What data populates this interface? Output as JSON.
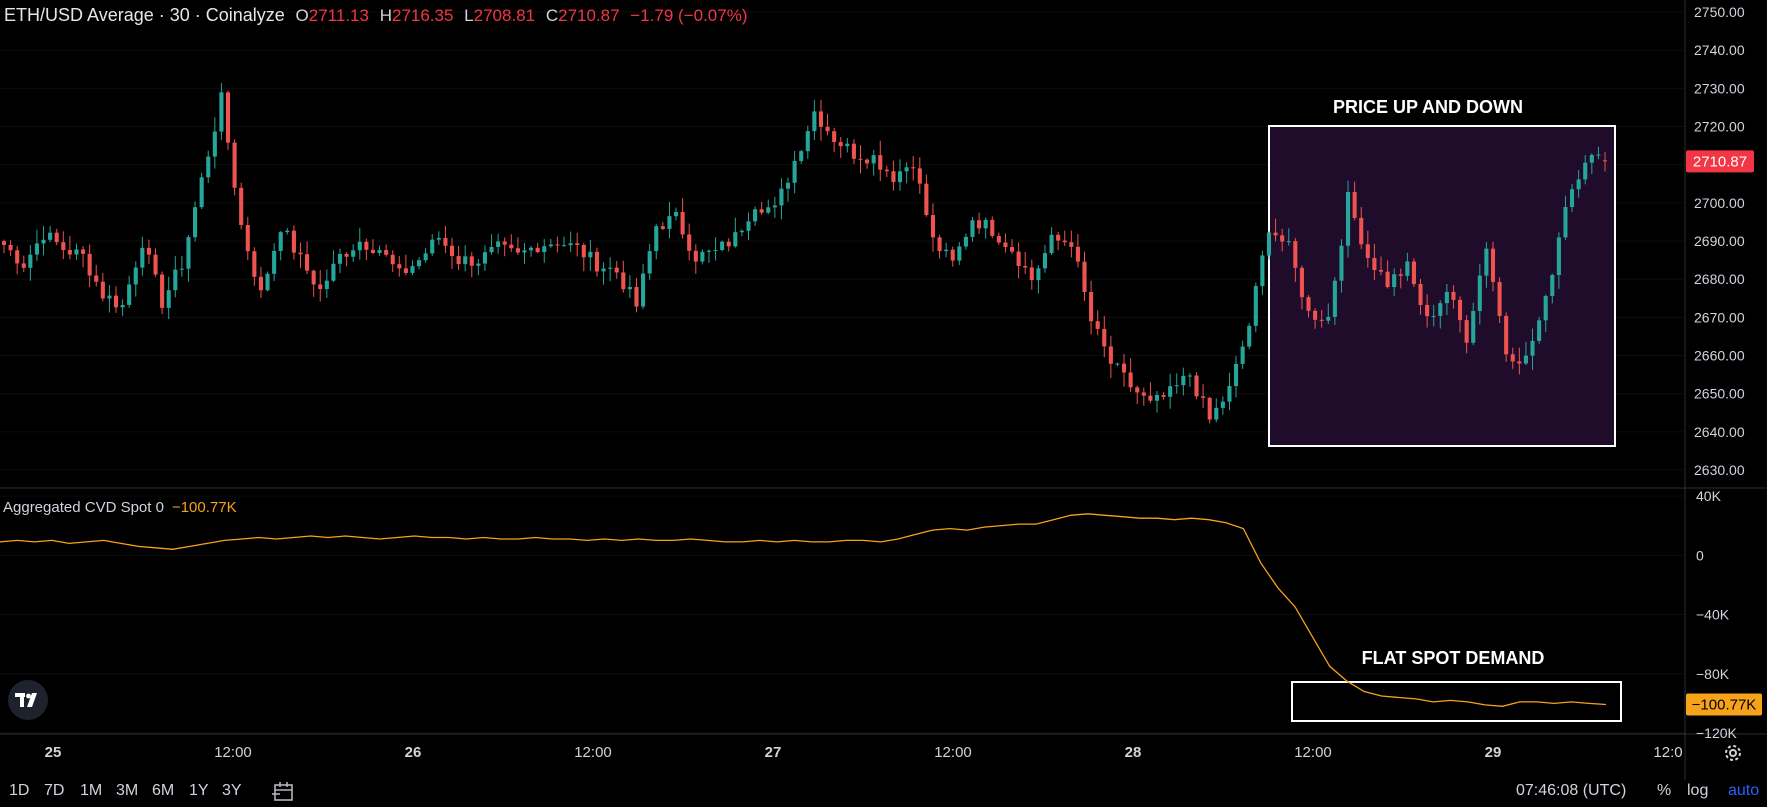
{
  "header": {
    "symbol": "ETH/USD Average · 30 · Coinalyze",
    "open_label": "O",
    "open": "2711.13",
    "high_label": "H",
    "high": "2716.35",
    "low_label": "L",
    "low": "2708.81",
    "close_label": "C",
    "close": "2710.87",
    "change": "−1.79 (−0.07%)"
  },
  "price_axis": {
    "ticks": [
      "2750.00",
      "2740.00",
      "2730.00",
      "2720.00",
      "2710.00",
      "2700.00",
      "2690.00",
      "2680.00",
      "2670.00",
      "2660.00",
      "2650.00",
      "2640.00",
      "2630.00"
    ],
    "last_price_label": "2710.87"
  },
  "cvd": {
    "name": "Aggregated CVD Spot 0",
    "value": "−100.77K",
    "ticks": [
      "40K",
      "0",
      "−40K",
      "−80K",
      "−120K"
    ],
    "last_value_label": "−100.77K"
  },
  "time_axis": {
    "labels": [
      "25",
      "12:00",
      "26",
      "12:00",
      "27",
      "12:00",
      "28",
      "12:00",
      "29",
      "12:0"
    ]
  },
  "annotations": {
    "price_box_label": "PRICE UP AND DOWN",
    "cvd_box_label": "FLAT SPOT DEMAND"
  },
  "bottom": {
    "ranges": [
      "1D",
      "7D",
      "1M",
      "3M",
      "6M",
      "1Y",
      "3Y"
    ],
    "time": "07:46:08 (UTC)",
    "percent": "%",
    "log": "log",
    "auto": "auto"
  },
  "colors": {
    "up": "#26a69a",
    "down": "#ef5350",
    "cvd_line": "#f7a21b",
    "price_box_fill": "#1f0c2a",
    "last_price_bg": "#f23645",
    "cvd_label_bg": "#f7a21b",
    "auto_active": "#2962ff"
  },
  "chart_data": [
    {
      "type": "candlestick",
      "title": "ETH/USD Average · 30 · Coinalyze",
      "ylim": [
        2625,
        2752
      ],
      "y_ticks": [
        2630,
        2640,
        2650,
        2660,
        2670,
        2680,
        2690,
        2700,
        2710,
        2720,
        2730,
        2740,
        2750
      ],
      "x_ticks": [
        "25",
        "12:00",
        "26",
        "12:00",
        "27",
        "12:00",
        "28",
        "12:00",
        "29",
        "12:0"
      ],
      "interval": "30m",
      "last": {
        "open": 2711.13,
        "high": 2716.35,
        "low": 2708.81,
        "close": 2710.87
      },
      "anchor_closes": [
        2689,
        2684,
        2692,
        2688,
        2686,
        2676,
        2673,
        2690,
        2674,
        2684,
        2706,
        2727,
        2694,
        2676,
        2694,
        2685,
        2677,
        2686,
        2690,
        2688,
        2681,
        2685,
        2691,
        2685,
        2685,
        2688,
        2686,
        2689,
        2690,
        2688,
        2684,
        2682,
        2673,
        2694,
        2696,
        2686,
        2687,
        2691,
        2700,
        2698,
        2711,
        2724,
        2717,
        2713,
        2712,
        2707,
        2711,
        2690,
        2684,
        2696,
        2693,
        2688,
        2680,
        2690,
        2690,
        2669,
        2658,
        2652,
        2647,
        2650,
        2655,
        2643,
        2651,
        2668,
        2694,
        2688,
        2671,
        2670,
        2701,
        2686,
        2679,
        2683,
        2669,
        2677,
        2665,
        2689,
        2661,
        2659,
        2674,
        2700,
        2712,
        2710.87
      ]
    },
    {
      "type": "line",
      "title": "Aggregated CVD Spot 0",
      "ylim": [
        -128,
        48
      ],
      "y_ticks": [
        40,
        0,
        -40,
        -80,
        -120
      ],
      "unit": "K",
      "x_ticks": [
        "25",
        "12:00",
        "26",
        "12:00",
        "27",
        "12:00",
        "28",
        "12:00",
        "29",
        "12:0"
      ],
      "values": [
        9,
        10,
        9,
        10,
        8,
        9,
        10,
        8,
        6,
        5,
        4,
        6,
        8,
        10,
        11,
        12,
        11,
        12,
        13,
        12,
        13,
        12,
        11,
        12,
        13,
        12,
        12,
        11,
        12,
        11,
        11,
        12,
        11,
        11,
        10,
        11,
        10,
        11,
        10,
        10,
        11,
        10,
        9,
        9,
        10,
        9,
        10,
        9,
        9,
        10,
        10,
        9,
        11,
        14,
        17,
        18,
        17,
        19,
        20,
        21,
        21,
        24,
        27,
        28,
        27,
        26,
        25,
        25,
        24,
        25,
        24,
        22,
        18,
        -5,
        -22,
        -35,
        -55,
        -75,
        -85,
        -92,
        -95,
        -96,
        -97,
        -99,
        -98,
        -99,
        -101,
        -102,
        -99,
        -99,
        -100,
        -99,
        -100,
        -100.77
      ],
      "last": -100.77
    }
  ]
}
